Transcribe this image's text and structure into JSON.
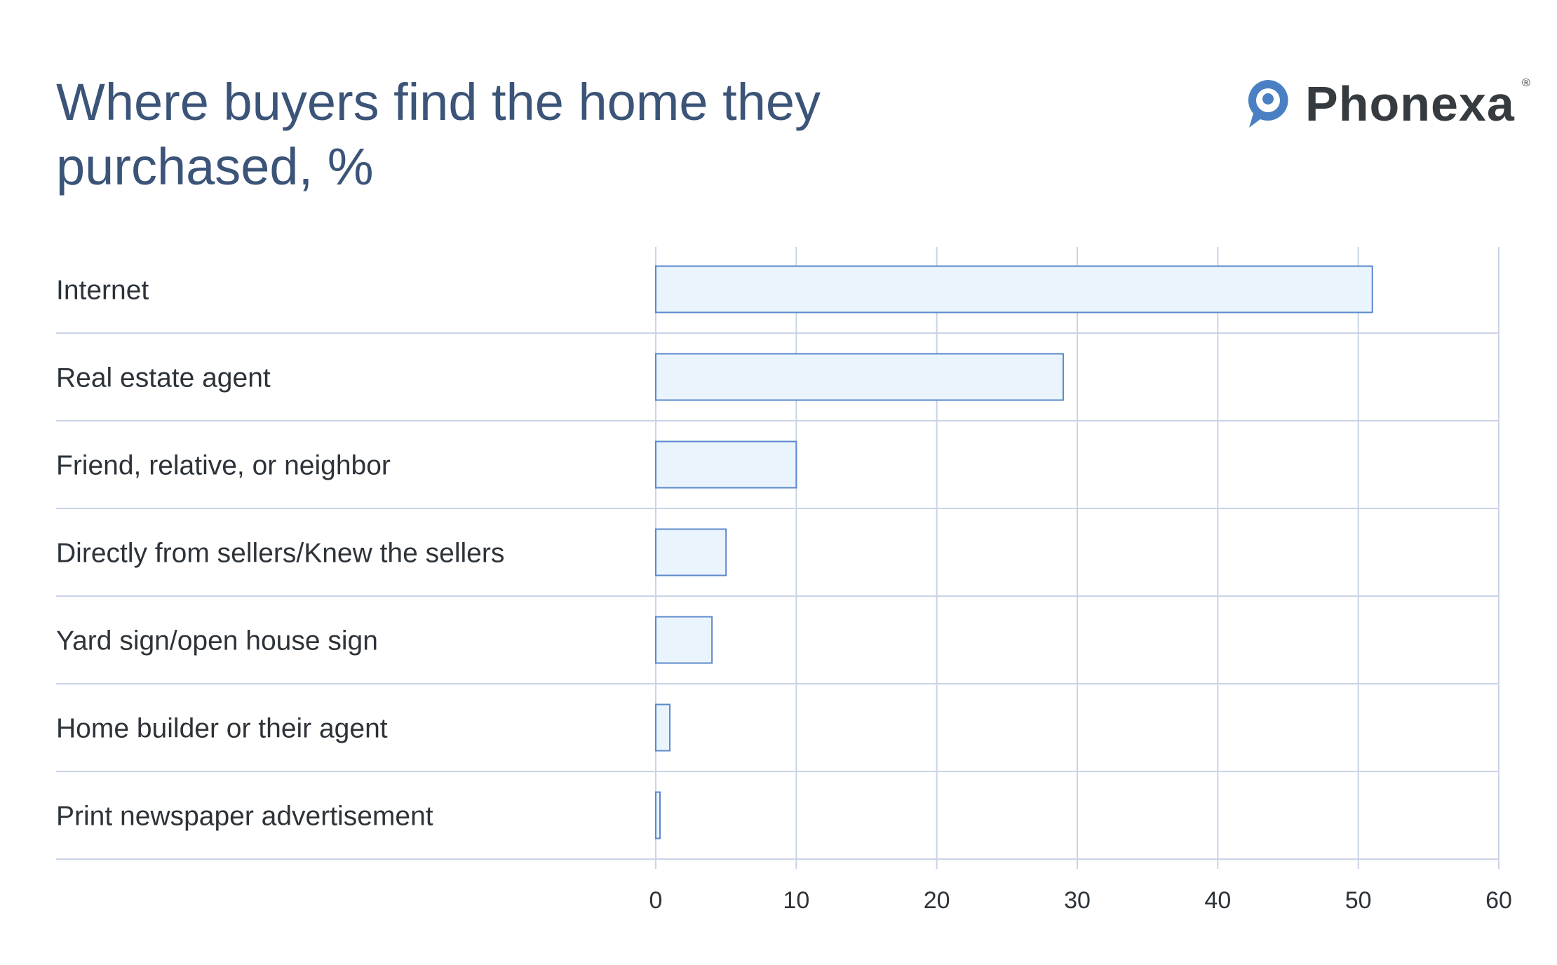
{
  "brand": {
    "name": "Phonexa",
    "registered": "®",
    "color": "#4a7fc4"
  },
  "chart_data": {
    "type": "bar",
    "orientation": "horizontal",
    "title": "Where buyers find the home they purchased, %",
    "categories": [
      "Internet",
      "Real estate agent",
      "Friend, relative, or neighbor",
      "Directly from sellers/Knew the sellers",
      "Yard sign/open house sign",
      "Home builder or their agent",
      "Print newspaper advertisement"
    ],
    "values": [
      51,
      29,
      10,
      5,
      4,
      1,
      0.3
    ],
    "xlim": [
      0,
      60
    ],
    "xticks": [
      "0",
      "10",
      "20",
      "30",
      "40",
      "50",
      "60"
    ],
    "xlabel": "",
    "ylabel": "",
    "grid": true,
    "colors": {
      "bar_fill": "#eaf4fd",
      "bar_stroke": "#5b88cc",
      "grid": "#c9d4e6"
    }
  }
}
